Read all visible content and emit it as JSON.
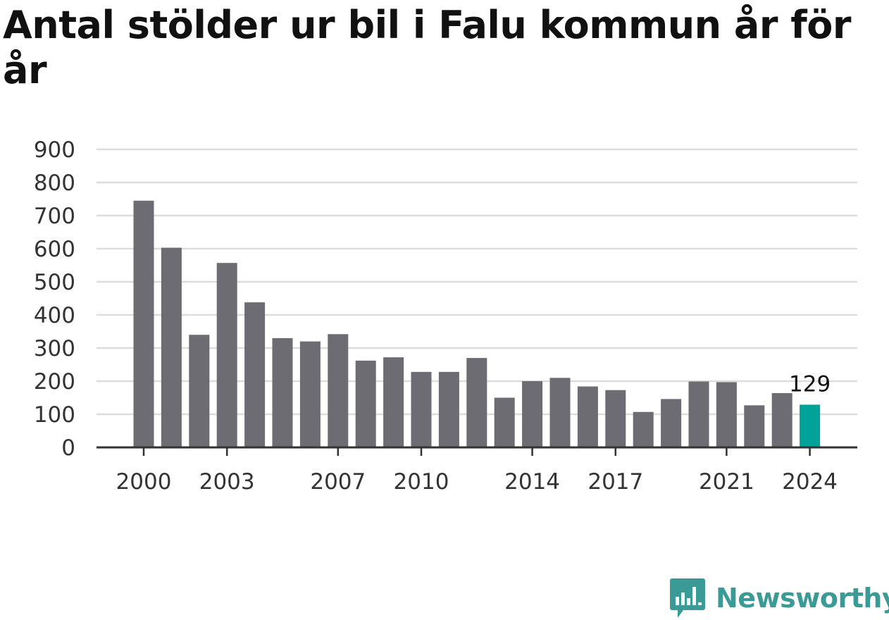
{
  "title": "Antal stölder ur bil i Falu kommun år för år",
  "brand": {
    "name": "Newsworthy",
    "logo_icon": "newsworthy-chart-bubble-icon"
  },
  "colors": {
    "bar": "#6e6c73",
    "highlight": "#00a39a",
    "grid": "#dcdcdc",
    "axis": "#333333",
    "brand": "#3a9b96"
  },
  "chart_data": {
    "type": "bar",
    "title": "Antal stölder ur bil i Falu kommun år för år",
    "xlabel": "",
    "ylabel": "",
    "categories": [
      "2000",
      "2001",
      "2002",
      "2003",
      "2004",
      "2005",
      "2006",
      "2007",
      "2008",
      "2009",
      "2010",
      "2011",
      "2012",
      "2013",
      "2014",
      "2015",
      "2016",
      "2017",
      "2018",
      "2019",
      "2020",
      "2021",
      "2022",
      "2023",
      "2024"
    ],
    "values": [
      745,
      603,
      340,
      557,
      438,
      330,
      320,
      342,
      262,
      272,
      228,
      228,
      270,
      150,
      200,
      210,
      184,
      173,
      107,
      146,
      199,
      197,
      127,
      164,
      129
    ],
    "ylim": [
      0,
      900
    ],
    "yticks": [
      0,
      100,
      200,
      300,
      400,
      500,
      600,
      700,
      800,
      900
    ],
    "xtick_labels": [
      "2000",
      "2003",
      "2007",
      "2010",
      "2014",
      "2017",
      "2021",
      "2024"
    ],
    "highlight": {
      "category": "2024",
      "label": "129"
    },
    "grid": true
  }
}
